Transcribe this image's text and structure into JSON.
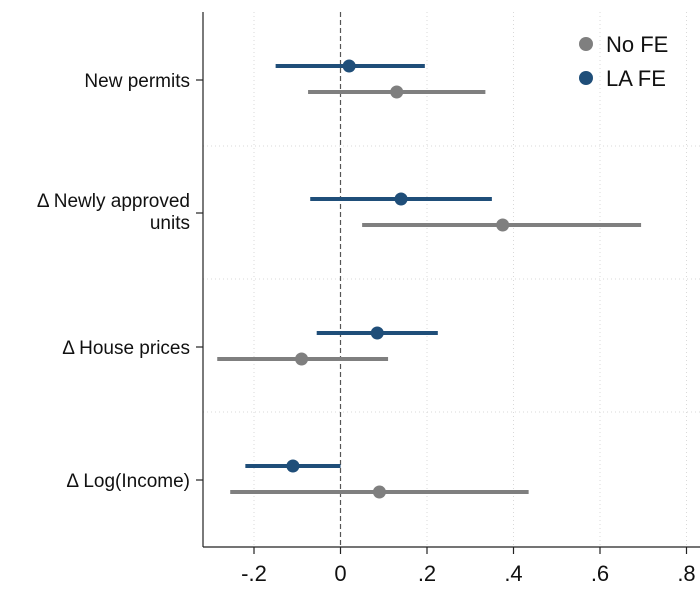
{
  "chart_data": {
    "type": "scatter",
    "subtype": "coefficient-plot-with-confidence-intervals",
    "orientation": "horizontal",
    "title": "",
    "xlabel": "",
    "ylabel": "",
    "xlim": [
      -0.3,
      0.8
    ],
    "x_ticks": [
      -0.2,
      0,
      0.2,
      0.4,
      0.6,
      0.8
    ],
    "x_tick_labels": [
      "-.2",
      "0",
      ".2",
      ".4",
      ".6",
      ".8"
    ],
    "reference_line_x": 0,
    "grid": "dotted",
    "legend_position": "top-right",
    "categories": [
      {
        "label_lines": [
          "New permits"
        ]
      },
      {
        "label_lines": [
          "Δ Newly approved",
          "units"
        ]
      },
      {
        "label_lines": [
          "Δ House prices"
        ]
      },
      {
        "label_lines": [
          "Δ Log(Income)"
        ]
      }
    ],
    "series": [
      {
        "name": "LA FE",
        "color": "#1f4e79",
        "points": [
          {
            "estimate": 0.02,
            "ci_low": -0.15,
            "ci_high": 0.195
          },
          {
            "estimate": 0.14,
            "ci_low": -0.07,
            "ci_high": 0.35
          },
          {
            "estimate": 0.085,
            "ci_low": -0.055,
            "ci_high": 0.225
          },
          {
            "estimate": -0.11,
            "ci_low": -0.22,
            "ci_high": 0.0
          }
        ]
      },
      {
        "name": "No FE",
        "color": "#7f7f7f",
        "points": [
          {
            "estimate": 0.13,
            "ci_low": -0.075,
            "ci_high": 0.335
          },
          {
            "estimate": 0.375,
            "ci_low": 0.05,
            "ci_high": 0.695
          },
          {
            "estimate": -0.09,
            "ci_low": -0.285,
            "ci_high": 0.11
          },
          {
            "estimate": 0.09,
            "ci_low": -0.255,
            "ci_high": 0.435
          }
        ]
      }
    ],
    "legend_order": [
      "No FE",
      "LA FE"
    ]
  }
}
